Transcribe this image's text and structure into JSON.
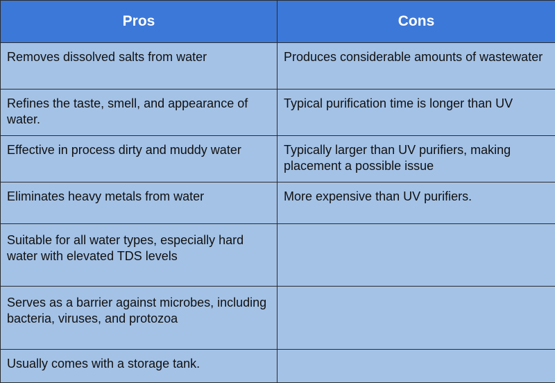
{
  "header": {
    "pros": "Pros",
    "cons": "Cons"
  },
  "rows": [
    {
      "pro": "Removes dissolved salts from water",
      "con": "Produces considerable amounts of wastewater"
    },
    {
      "pro": "Refines the taste, smell, and appearance of water.",
      "con": "Typical purification time is longer than UV"
    },
    {
      "pro": "Effective in process dirty and muddy water",
      "con": "Typically larger than UV purifiers, making placement a possible issue"
    },
    {
      "pro": "Eliminates heavy metals from water",
      "con": "More expensive than UV purifiers."
    },
    {
      "pro": "Suitable for all water types, especially hard water with elevated TDS levels",
      "con": ""
    },
    {
      "pro": "Serves as a barrier against microbes, including bacteria, viruses, and protozoa",
      "con": ""
    },
    {
      "pro": "Usually comes with a storage tank.",
      "con": ""
    }
  ],
  "colors": {
    "header_bg": "#3c78d8",
    "cell_bg": "#a4c2e6",
    "border": "#2b2b2b"
  }
}
